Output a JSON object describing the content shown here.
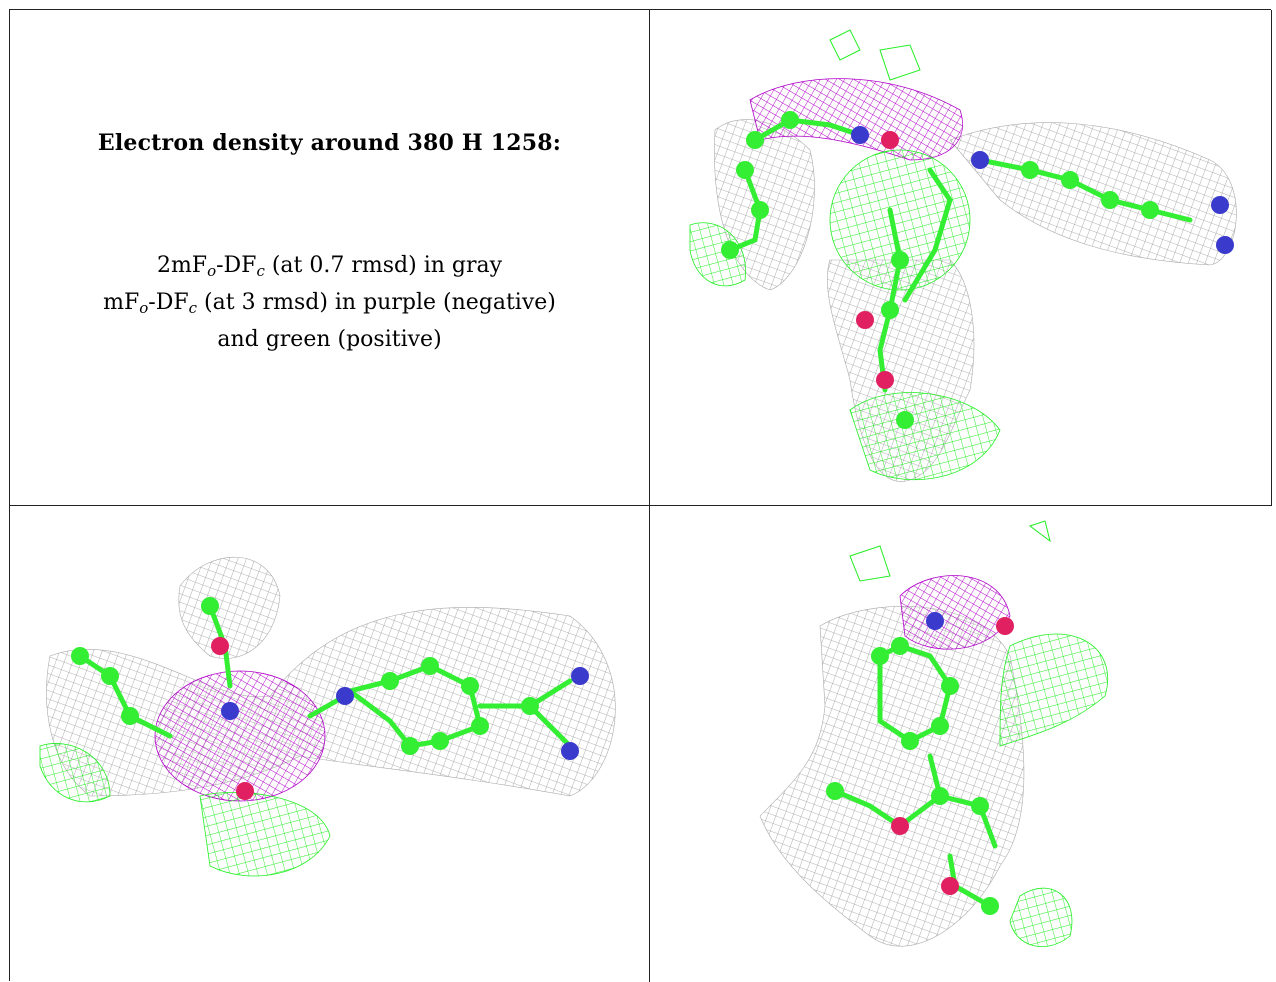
{
  "caption": {
    "title": "Electron density around 380 H 1258:",
    "line1_pre": "2mF",
    "line1_sub1": "o",
    "line1_mid": "-DF",
    "line1_sub2": "c",
    "line1_post": " (at 0.7 rmsd) in gray",
    "line2_pre": "mF",
    "line2_sub1": "o",
    "line2_mid": "-DF",
    "line2_sub2": "c",
    "line2_post": " (at 3 rmsd) in purple (negative)",
    "line3": "and green (positive)"
  },
  "colors": {
    "gray_mesh": "#9a9a9a",
    "purple_mesh": "#b000c8",
    "green_mesh": "#22ee22",
    "carbon": "#33ee33",
    "nitrogen": "#3a3acc",
    "oxygen": "#e02060"
  },
  "views": [
    "view-top-right",
    "view-bottom-left",
    "view-bottom-right"
  ]
}
